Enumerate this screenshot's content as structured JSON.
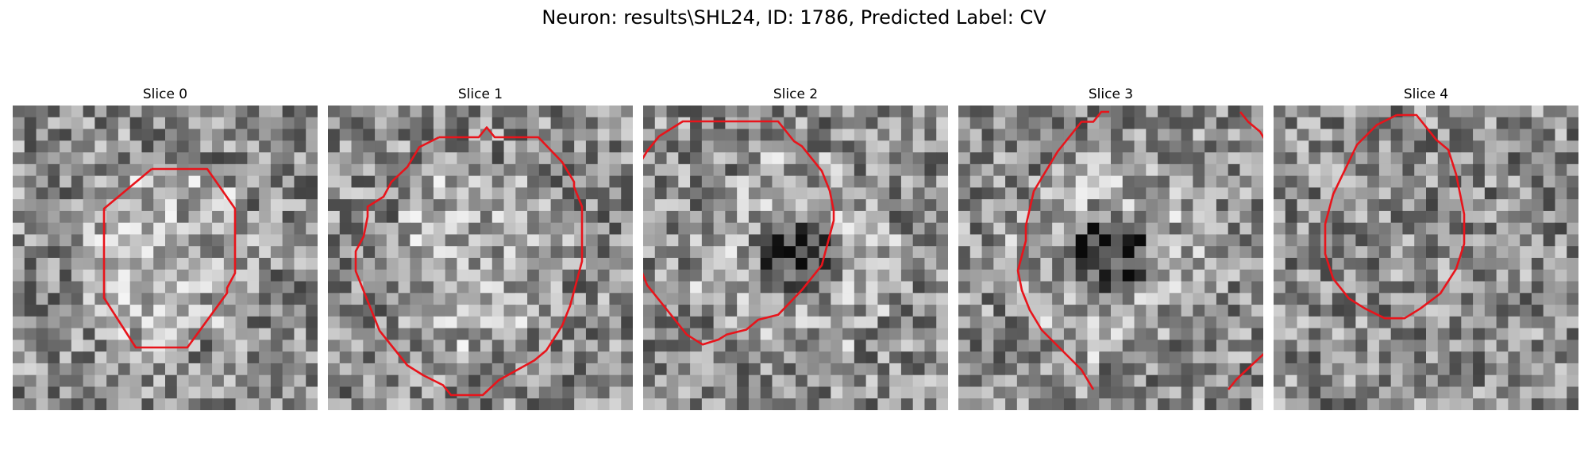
{
  "figure": {
    "title": "Neuron: results\\SHL24, ID: 1786, Predicted Label: CV"
  },
  "panels": [
    {
      "title": "Slice 0",
      "seed": 11,
      "center": "bright",
      "contour": [
        [
          2.9,
          0.8
        ],
        [
          4.3,
          0.8
        ],
        [
          5.0,
          1.6
        ],
        [
          5.0,
          2.9
        ],
        [
          4.8,
          3.2
        ],
        [
          4.8,
          3.3
        ],
        [
          3.8,
          4.4
        ],
        [
          2.5,
          4.4
        ],
        [
          1.7,
          3.4
        ],
        [
          1.7,
          1.6
        ],
        [
          2.9,
          0.8
        ]
      ]
    },
    {
      "title": "Slice 1",
      "seed": 23,
      "center": "bright",
      "contour": [
        [
          2.2,
          0.0
        ],
        [
          3.2,
          0.0
        ],
        [
          3.4,
          -0.2
        ],
        [
          3.6,
          0.0
        ],
        [
          4.7,
          0.0
        ],
        [
          5.3,
          0.5
        ],
        [
          5.6,
          0.9
        ],
        [
          5.6,
          1.0
        ],
        [
          5.8,
          1.4
        ],
        [
          5.8,
          2.5
        ],
        [
          5.6,
          3.1
        ],
        [
          5.5,
          3.4
        ],
        [
          5.3,
          3.8
        ],
        [
          4.9,
          4.3
        ],
        [
          4.6,
          4.5
        ],
        [
          3.7,
          4.9
        ],
        [
          3.3,
          5.2
        ],
        [
          2.5,
          5.2
        ],
        [
          2.3,
          5.0
        ],
        [
          1.8,
          4.8
        ],
        [
          1.4,
          4.6
        ],
        [
          0.7,
          3.9
        ],
        [
          0.3,
          3.1
        ],
        [
          0.1,
          2.7
        ],
        [
          0.1,
          2.3
        ],
        [
          0.3,
          2.0
        ],
        [
          0.4,
          1.6
        ],
        [
          0.4,
          1.4
        ],
        [
          0.8,
          1.2
        ],
        [
          1.0,
          0.9
        ],
        [
          1.4,
          0.6
        ],
        [
          1.7,
          0.2
        ],
        [
          2.2,
          0.0
        ]
      ]
    },
    {
      "title": "Slice 2",
      "seed": 37,
      "center": "dark",
      "contour": [
        [
          1.3,
          0.0
        ],
        [
          2.8,
          0.0
        ],
        [
          3.2,
          0.4
        ],
        [
          3.4,
          0.5
        ],
        [
          3.9,
          1.0
        ],
        [
          4.1,
          1.4
        ],
        [
          4.2,
          1.8
        ],
        [
          4.2,
          2.0
        ],
        [
          3.9,
          2.9
        ],
        [
          3.4,
          3.4
        ],
        [
          2.8,
          3.9
        ],
        [
          2.3,
          4.0
        ],
        [
          2.0,
          4.2
        ],
        [
          1.5,
          4.3
        ],
        [
          1.3,
          4.4
        ],
        [
          0.9,
          4.5
        ],
        [
          0.5,
          4.3
        ],
        [
          0.0,
          3.8
        ],
        [
          -0.5,
          3.3
        ],
        [
          -1.0,
          2.3
        ],
        [
          -1.0,
          1.7
        ],
        [
          -0.8,
          1.0
        ],
        [
          -0.5,
          0.6
        ],
        [
          -0.2,
          0.3
        ],
        [
          0.4,
          0.0
        ],
        [
          1.3,
          0.0
        ]
      ]
    },
    {
      "title": "Slice 3",
      "seed": 53,
      "center": "dark",
      "contour": [
        [
          [
            3.2,
            0.0
          ],
          [
            3.0,
            0.0
          ],
          [
            2.8,
            0.2
          ],
          [
            2.5,
            0.2
          ],
          [
            1.9,
            0.8
          ],
          [
            1.6,
            1.2
          ],
          [
            1.3,
            1.6
          ],
          [
            1.1,
            2.3
          ],
          [
            1.1,
            2.6
          ],
          [
            0.9,
            3.2
          ],
          [
            1.0,
            3.6
          ],
          [
            1.2,
            4.0
          ],
          [
            1.5,
            4.4
          ],
          [
            2.0,
            4.8
          ],
          [
            2.5,
            5.2
          ],
          [
            2.8,
            5.6
          ]
        ],
        [
          [
            6.5,
            0.0
          ],
          [
            6.7,
            0.2
          ],
          [
            7.0,
            0.4
          ],
          [
            7.3,
            0.8
          ],
          [
            7.5,
            1.1
          ],
          [
            7.8,
            1.4
          ],
          [
            7.9,
            2.0
          ],
          [
            8.0,
            2.5
          ],
          [
            8.1,
            3.0
          ],
          [
            8.0,
            3.6
          ],
          [
            7.9,
            4.0
          ],
          [
            7.6,
            4.3
          ],
          [
            7.2,
            4.8
          ],
          [
            6.8,
            5.1
          ],
          [
            6.4,
            5.4
          ],
          [
            6.2,
            5.6
          ]
        ]
      ]
    },
    {
      "title": "Slice 4",
      "seed": 71,
      "center": "neutral",
      "contour": [
        [
          2.5,
          0.0
        ],
        [
          3.0,
          0.0
        ],
        [
          3.5,
          0.5
        ],
        [
          3.8,
          0.7
        ],
        [
          4.0,
          1.2
        ],
        [
          4.1,
          1.6
        ],
        [
          4.2,
          2.0
        ],
        [
          4.2,
          2.6
        ],
        [
          4.0,
          3.1
        ],
        [
          3.6,
          3.6
        ],
        [
          3.1,
          3.9
        ],
        [
          2.7,
          4.1
        ],
        [
          2.2,
          4.1
        ],
        [
          1.7,
          3.9
        ],
        [
          1.3,
          3.7
        ],
        [
          0.9,
          3.3
        ],
        [
          0.7,
          2.8
        ],
        [
          0.7,
          2.2
        ],
        [
          0.9,
          1.6
        ],
        [
          1.2,
          1.1
        ],
        [
          1.5,
          0.6
        ],
        [
          2.0,
          0.2
        ],
        [
          2.5,
          0.0
        ]
      ]
    }
  ]
}
